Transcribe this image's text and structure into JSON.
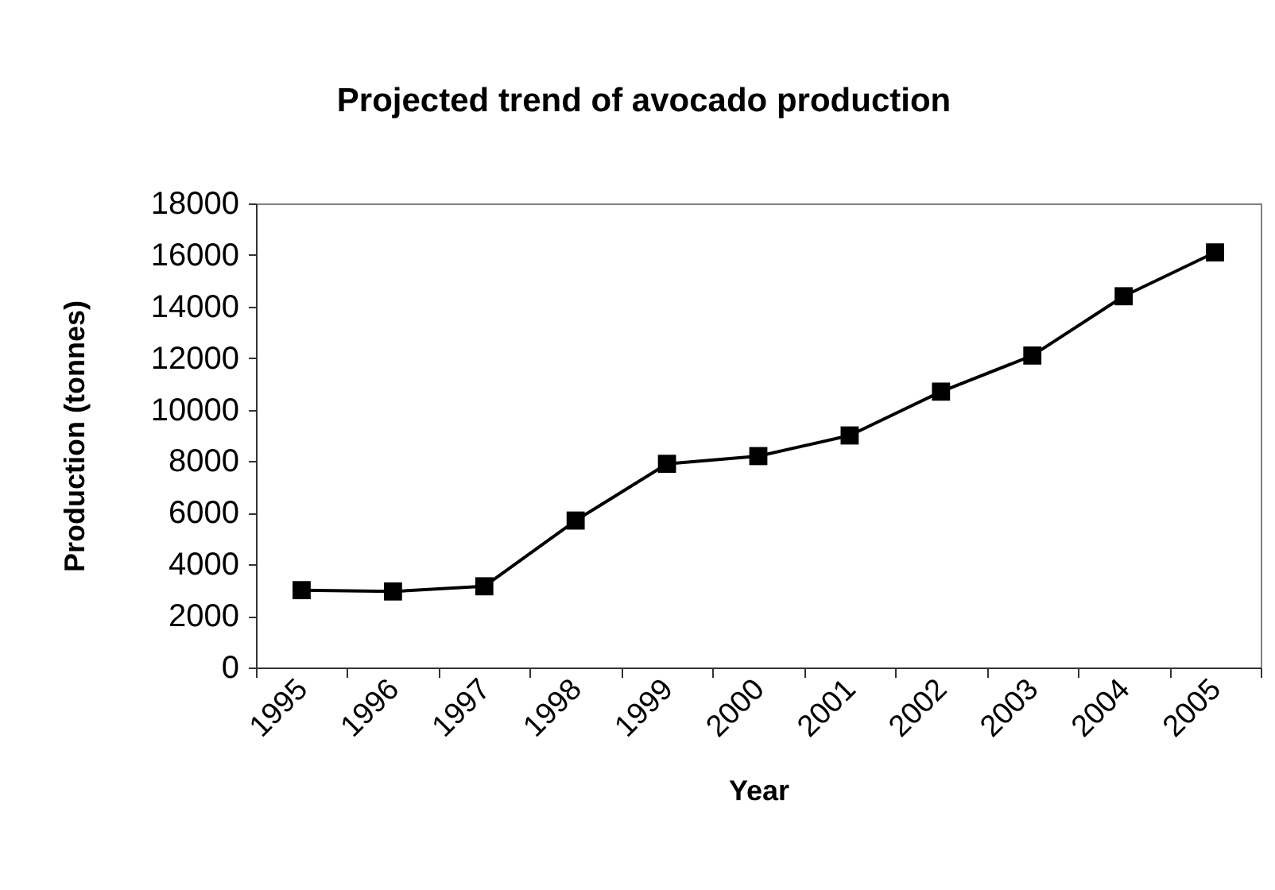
{
  "chart_data": {
    "type": "line",
    "title": "Projected trend of avocado production",
    "xlabel": "Year",
    "ylabel": "Production (tonnes)",
    "categories": [
      "1995",
      "1996",
      "1997",
      "1998",
      "1999",
      "2000",
      "2001",
      "2002",
      "2003",
      "2004",
      "2005"
    ],
    "values": [
      3000,
      2950,
      3150,
      5700,
      7900,
      8200,
      9000,
      10700,
      12100,
      14400,
      16100
    ],
    "color": "#000000",
    "marker": "square",
    "line_style": "solid",
    "ylim": [
      0,
      18000
    ],
    "yticks": [
      0,
      2000,
      4000,
      6000,
      8000,
      10000,
      12000,
      14000,
      16000,
      18000
    ]
  }
}
